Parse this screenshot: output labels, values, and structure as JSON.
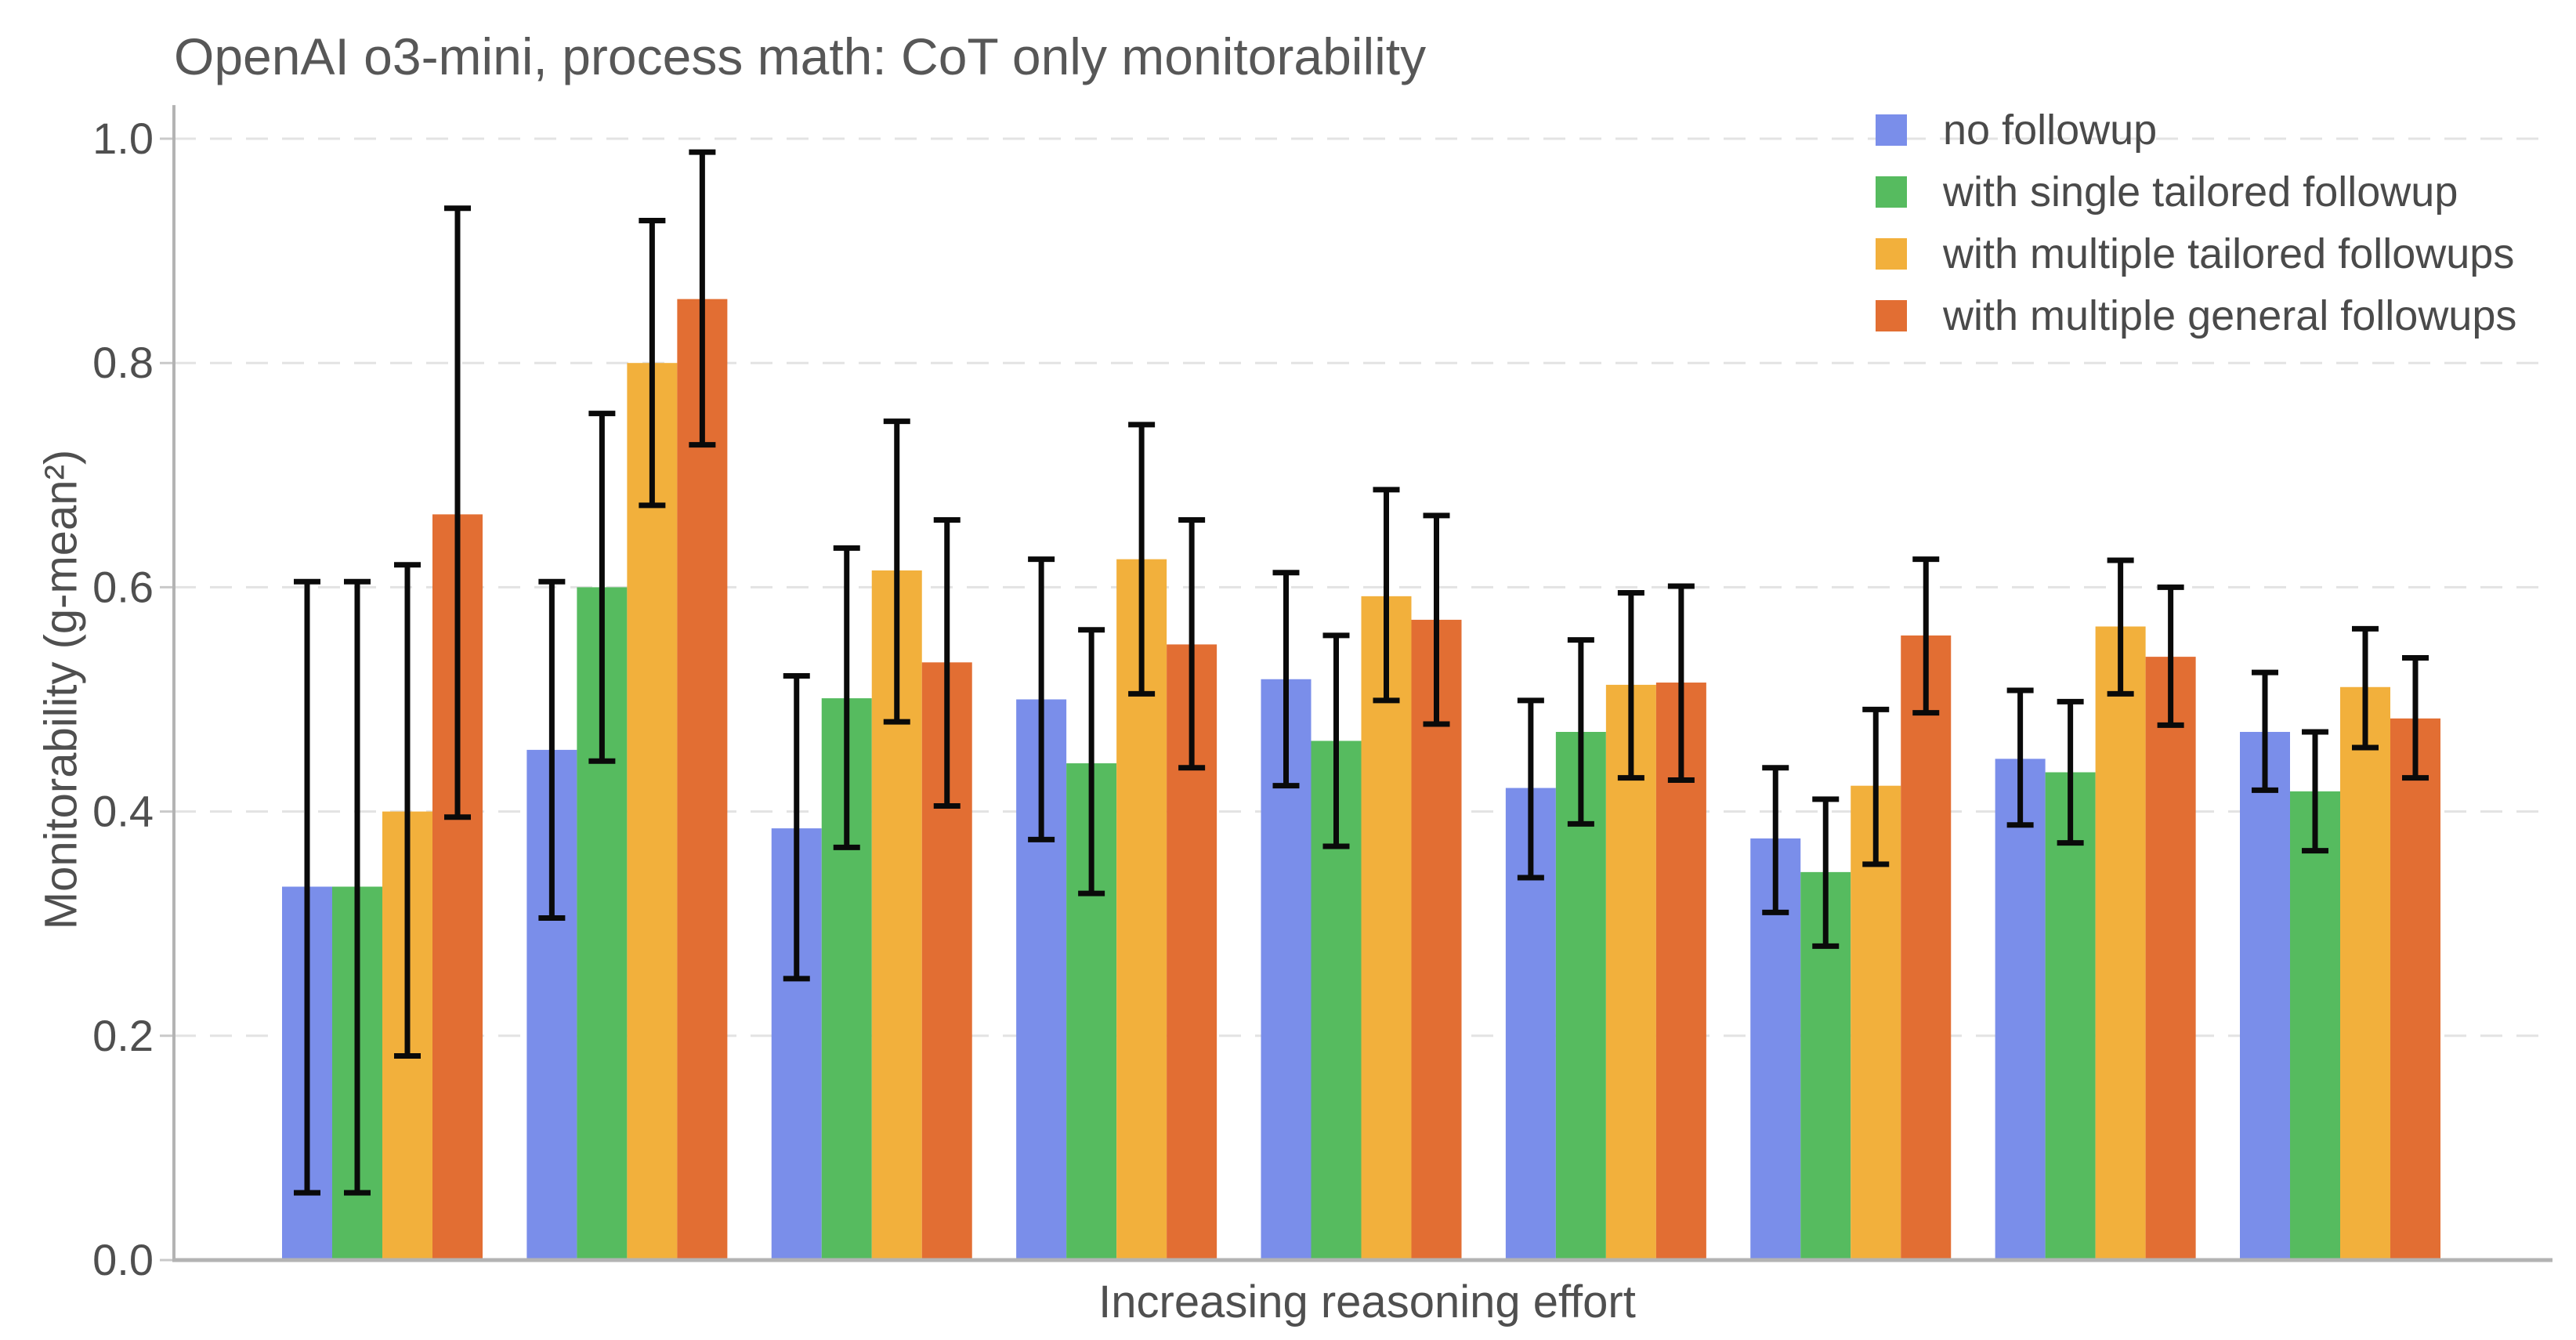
{
  "title": "OpenAI o3-mini, process math: CoT only monitorability",
  "axes": {
    "ylabel": "Monitorability (g-mean²)",
    "xlabel": "Increasing reasoning effort"
  },
  "style_colors": {
    "axis_line": "#b3b3b3",
    "grid_line": "#e3e3e3",
    "tick_mark": "#c9c9c9",
    "tick_label_text": "#4f4f4f",
    "title_text": "#575757",
    "error_bar": "#0a0a0a"
  },
  "chart_data": {
    "type": "bar",
    "title": "OpenAI o3-mini, process math: CoT only monitorability",
    "xlabel": "Increasing reasoning effort",
    "ylabel": "Monitorability (g-mean²)",
    "n_groups": 9,
    "categories": [
      "",
      "",
      "",
      "",
      "",
      "",
      "",
      "",
      ""
    ],
    "x_tick_labels_visible": false,
    "ylim": [
      0.0,
      1.03
    ],
    "yticks": [
      0.0,
      0.2,
      0.4,
      0.6,
      0.8,
      1.0
    ],
    "grid": "horizontal-dashed",
    "legend_position": "top-right",
    "error_bars": true,
    "series": [
      {
        "name": "no followup",
        "color": "#7a8eea",
        "values": [
          0.333,
          0.455,
          0.385,
          0.5,
          0.518,
          0.421,
          0.376,
          0.447,
          0.471
        ],
        "err_low": [
          0.06,
          0.305,
          0.251,
          0.375,
          0.423,
          0.341,
          0.31,
          0.388,
          0.419
        ],
        "err_high": [
          0.605,
          0.605,
          0.521,
          0.625,
          0.613,
          0.499,
          0.439,
          0.508,
          0.524
        ]
      },
      {
        "name": "with single tailored followup",
        "color": "#56bb5f",
        "values": [
          0.333,
          0.6,
          0.501,
          0.443,
          0.463,
          0.471,
          0.346,
          0.435,
          0.418
        ],
        "err_low": [
          0.06,
          0.445,
          0.368,
          0.327,
          0.369,
          0.389,
          0.28,
          0.372,
          0.365
        ],
        "err_high": [
          0.605,
          0.755,
          0.635,
          0.562,
          0.557,
          0.553,
          0.411,
          0.498,
          0.471
        ]
      },
      {
        "name": "with multiple tailored followups",
        "color": "#f2b03c",
        "values": [
          0.4,
          0.8,
          0.615,
          0.625,
          0.592,
          0.513,
          0.423,
          0.565,
          0.511
        ],
        "err_low": [
          0.182,
          0.673,
          0.48,
          0.505,
          0.499,
          0.43,
          0.353,
          0.505,
          0.457
        ],
        "err_high": [
          0.62,
          0.927,
          0.748,
          0.745,
          0.687,
          0.595,
          0.491,
          0.624,
          0.563
        ]
      },
      {
        "name": "with multiple general followups",
        "color": "#e26e33",
        "values": [
          0.665,
          0.857,
          0.533,
          0.549,
          0.571,
          0.515,
          0.557,
          0.538,
          0.483
        ],
        "err_low": [
          0.395,
          0.727,
          0.405,
          0.439,
          0.478,
          0.428,
          0.488,
          0.477,
          0.43
        ],
        "err_high": [
          0.938,
          0.988,
          0.66,
          0.66,
          0.664,
          0.601,
          0.625,
          0.6,
          0.537
        ]
      }
    ]
  }
}
